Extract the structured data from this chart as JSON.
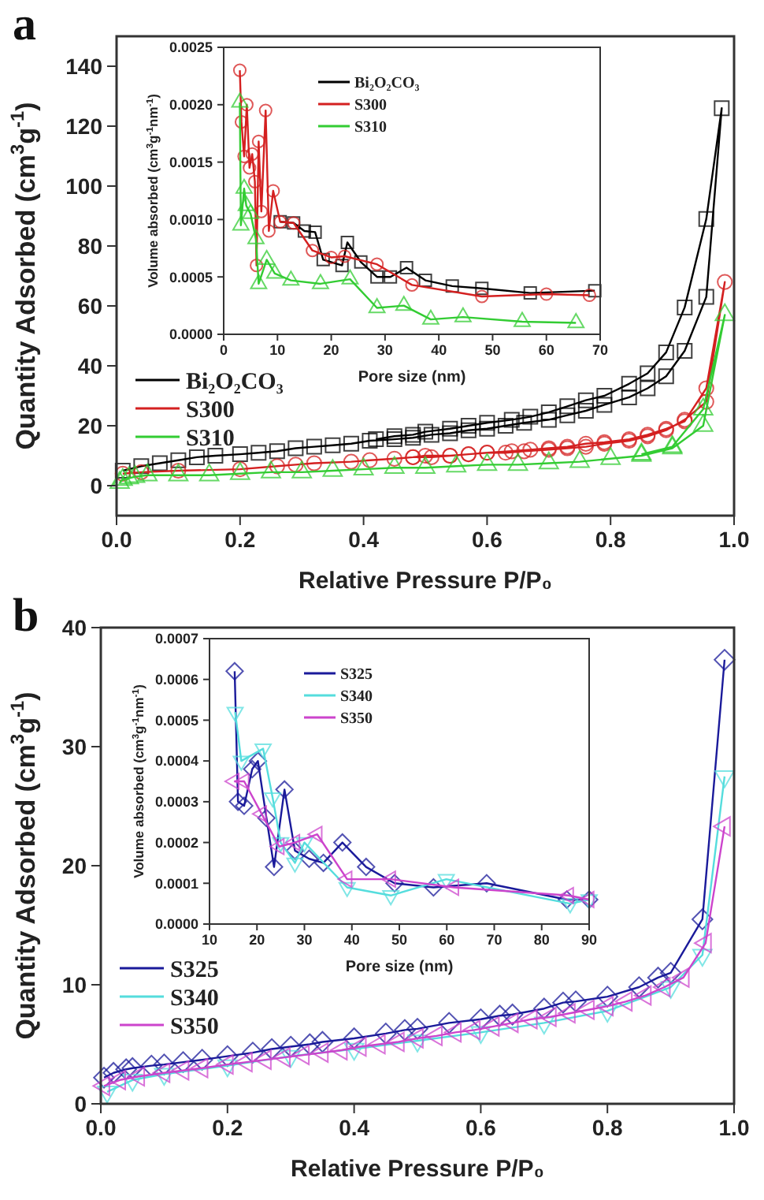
{
  "chart_data": [
    {
      "type": "line",
      "title": "a",
      "xlabel": "Relative Pressure P/P₀",
      "ylabel": "Quantity Adsorbed (cm$^{3}$g$^{-1}$)",
      "xlim": [
        0,
        1
      ],
      "ylim": [
        -10,
        150
      ],
      "xticks": [
        {
          "value": 0,
          "label": "0.0"
        },
        {
          "value": 0.2,
          "label": "0.2"
        },
        {
          "value": 0.4,
          "label": "0.4"
        },
        {
          "value": 0.6,
          "label": "0.6"
        },
        {
          "value": 0.8,
          "label": "0.8"
        },
        {
          "value": 1,
          "label": "1.0"
        }
      ],
      "yticks": [
        0,
        20,
        40,
        60,
        80,
        100,
        120,
        140
      ],
      "legend": "bottom left",
      "series": [
        {
          "name": "Bi₂O₂CO₃",
          "color": "#000000",
          "marker": "square",
          "x": [
            0.01,
            0.04,
            0.07,
            0.1,
            0.13,
            0.16,
            0.2,
            0.23,
            0.26,
            0.29,
            0.32,
            0.35,
            0.38,
            0.41,
            0.45,
            0.48,
            0.51,
            0.54,
            0.57,
            0.6,
            0.63,
            0.66,
            0.7,
            0.73,
            0.76,
            0.79,
            0.83,
            0.86,
            0.89,
            0.92,
            0.955,
            0.98,
            0.955,
            0.92,
            0.89,
            0.86,
            0.83,
            0.79,
            0.76,
            0.73,
            0.7,
            0.67,
            0.64,
            0.6,
            0.57,
            0.54,
            0.5,
            0.48,
            0.45,
            0.42
          ],
          "values": [
            5,
            6.5,
            7.5,
            8.5,
            9.5,
            10,
            10.5,
            11,
            11.5,
            12.5,
            13,
            13.5,
            14,
            15,
            15.5,
            16,
            17,
            17.5,
            18.5,
            19,
            20,
            21,
            22,
            23.5,
            25,
            27,
            29.5,
            32.5,
            36.5,
            45,
            63,
            126,
            89,
            59.5,
            44.5,
            37.5,
            34,
            30,
            28.5,
            26.5,
            24.5,
            23,
            22,
            21,
            20,
            19,
            18,
            17,
            16.5,
            15.5
          ]
        },
        {
          "name": "S300",
          "color": "#d42020",
          "marker": "circle",
          "x": [
            0.01,
            0.04,
            0.1,
            0.2,
            0.26,
            0.29,
            0.32,
            0.38,
            0.41,
            0.45,
            0.48,
            0.51,
            0.54,
            0.57,
            0.6,
            0.63,
            0.66,
            0.7,
            0.73,
            0.76,
            0.79,
            0.83,
            0.86,
            0.89,
            0.92,
            0.955,
            0.985,
            0.955,
            0.92,
            0.89,
            0.86,
            0.83,
            0.79,
            0.76,
            0.73,
            0.7,
            0.67,
            0.64,
            0.6,
            0.57,
            0.54,
            0.5,
            0.48
          ],
          "values": [
            4,
            4.5,
            5,
            5.5,
            6.5,
            7,
            7.5,
            8,
            8.5,
            9,
            9.5,
            9.5,
            10,
            10.5,
            11,
            11,
            11.5,
            12,
            12.5,
            13,
            14,
            15,
            16.5,
            18.5,
            22,
            28,
            68,
            32.5,
            21.5,
            19,
            17,
            15.5,
            14.5,
            14,
            13,
            12.5,
            12,
            11.5,
            11,
            10.5,
            10,
            10,
            9.5
          ]
        },
        {
          "name": "S310",
          "color": "#33cc33",
          "marker": "triangle",
          "x": [
            0.005,
            0.01,
            0.02,
            0.03,
            0.05,
            0.1,
            0.15,
            0.2,
            0.25,
            0.3,
            0.35,
            0.4,
            0.45,
            0.5,
            0.55,
            0.6,
            0.65,
            0.7,
            0.75,
            0.8,
            0.85,
            0.9,
            0.95,
            0.985,
            0.95,
            0.9,
            0.85
          ],
          "values": [
            1,
            2,
            2.5,
            3,
            3.5,
            3.5,
            3.5,
            4,
            4.5,
            4.5,
            5,
            5.5,
            6,
            6,
            6.5,
            7,
            7,
            7.5,
            8,
            9,
            10,
            12.5,
            20,
            57,
            25.5,
            13,
            10.5
          ]
        }
      ]
    },
    {
      "type": "line",
      "xlabel": "Pore size (nm)",
      "ylabel": "Volume absorbed (cm$^{3}$g$^{-1}$nm$^{-1}$)",
      "xlim": [
        0,
        70
      ],
      "ylim": [
        0,
        0.0025
      ],
      "xticks": [
        0,
        10,
        20,
        30,
        40,
        50,
        60,
        70
      ],
      "yticks": [
        {
          "value": 0,
          "label": "0.0000"
        },
        {
          "value": 0.0005,
          "label": "0.0005"
        },
        {
          "value": 0.001,
          "label": "0.0010"
        },
        {
          "value": 0.0015,
          "label": "0.0015"
        },
        {
          "value": 0.002,
          "label": "0.0020"
        },
        {
          "value": 0.0025,
          "label": "0.0025"
        }
      ],
      "legend": "top",
      "series": [
        {
          "name": "Bi₂O₂CO₃",
          "color": "#000000",
          "marker": "square",
          "x": [
            10.5,
            13,
            15,
            17,
            18.5,
            22,
            23,
            25.5,
            28.5,
            31,
            34,
            37.5,
            42.5,
            48,
            57,
            69
          ],
          "values": [
            0.00098,
            0.00097,
            0.0009,
            0.00089,
            0.00065,
            0.0006,
            0.0008,
            0.00063,
            0.0005,
            0.0005,
            0.00058,
            0.00047,
            0.00042,
            0.0004,
            0.00036,
            0.00038
          ]
        },
        {
          "name": "S300",
          "color": "#d42020",
          "marker": "circle",
          "x": [
            3,
            3.3,
            3.8,
            4.3,
            4.8,
            5.3,
            5.8,
            6.1,
            6.5,
            7,
            7.8,
            8.4,
            9.2,
            10.5,
            13,
            16.5,
            20,
            22.5,
            28.5,
            35,
            48,
            60,
            68
          ],
          "values": [
            0.0023,
            0.00185,
            0.00155,
            0.002,
            0.00145,
            0.00157,
            0.00133,
            0.0006,
            0.00168,
            0.00107,
            0.00195,
            0.0009,
            0.00125,
            0.00098,
            0.00097,
            0.00073,
            0.00067,
            0.00068,
            0.00061,
            0.00043,
            0.00033,
            0.00035,
            0.00034
          ]
        },
        {
          "name": "S310",
          "color": "#33cc33",
          "marker": "triangle",
          "x": [
            3,
            3.2,
            3.8,
            4.2,
            5,
            6,
            6.5,
            8,
            9.5,
            12.5,
            18,
            23.5,
            28.5,
            33.5,
            38.5,
            44.5,
            55.5,
            65.5
          ],
          "values": [
            0.00202,
            0.00095,
            0.00127,
            0.00112,
            0.00105,
            0.00083,
            0.00044,
            0.00065,
            0.00053,
            0.00047,
            0.00044,
            0.00048,
            0.00023,
            0.00025,
            0.00013,
            0.00015,
            0.00011,
            0.0001
          ]
        }
      ]
    },
    {
      "type": "line",
      "title": "b",
      "xlabel": "Relative Pressure P/P₀",
      "ylabel": "Quantity Adsorbed (cm$^{3}$g$^{-1}$)",
      "xlim": [
        0,
        1
      ],
      "ylim": [
        0,
        40
      ],
      "xticks": [
        {
          "value": 0,
          "label": "0.0"
        },
        {
          "value": 0.2,
          "label": "0.2"
        },
        {
          "value": 0.4,
          "label": "0.4"
        },
        {
          "value": 0.6,
          "label": "0.6"
        },
        {
          "value": 0.8,
          "label": "0.8"
        },
        {
          "value": 1,
          "label": "1.0"
        }
      ],
      "yticks": [
        0,
        10,
        20,
        30,
        40
      ],
      "legend": "bottom left",
      "series": [
        {
          "name": "S325",
          "color": "#1a1a9a",
          "marker": "diamond",
          "x": [
            0.005,
            0.02,
            0.04,
            0.05,
            0.08,
            0.1,
            0.13,
            0.16,
            0.2,
            0.24,
            0.27,
            0.3,
            0.33,
            0.35,
            0.4,
            0.45,
            0.48,
            0.5,
            0.55,
            0.6,
            0.63,
            0.65,
            0.7,
            0.73,
            0.75,
            0.8,
            0.85,
            0.88,
            0.9,
            0.95,
            0.985
          ],
          "values": [
            2.2,
            2.6,
            2.9,
            3,
            3.2,
            3.3,
            3.5,
            3.7,
            4,
            4.3,
            4.6,
            4.8,
            5,
            5.2,
            5.5,
            5.9,
            6.2,
            6.3,
            6.8,
            7.1,
            7.4,
            7.5,
            8,
            8.5,
            8.6,
            9,
            9.8,
            10.6,
            11,
            15.5,
            37.3
          ]
        },
        {
          "name": "S340",
          "color": "#55dddd",
          "marker": "triangle-down",
          "x": [
            0.01,
            0.05,
            0.1,
            0.2,
            0.3,
            0.4,
            0.5,
            0.6,
            0.7,
            0.8,
            0.9,
            0.95,
            0.985
          ],
          "values": [
            1,
            2,
            2.5,
            3.2,
            4,
            4.6,
            5.3,
            6,
            6.8,
            7.8,
            9.8,
            12.5,
            27.5
          ]
        },
        {
          "name": "S350",
          "color": "#cc44cc",
          "marker": "triangle-left",
          "x": [
            0.005,
            0.03,
            0.06,
            0.1,
            0.13,
            0.16,
            0.2,
            0.23,
            0.26,
            0.29,
            0.32,
            0.35,
            0.38,
            0.41,
            0.44,
            0.47,
            0.5,
            0.53,
            0.56,
            0.59,
            0.62,
            0.65,
            0.68,
            0.71,
            0.74,
            0.77,
            0.8,
            0.83,
            0.86,
            0.89,
            0.92,
            0.955,
            0.985
          ],
          "values": [
            1.5,
            2,
            2.3,
            2.6,
            2.8,
            3,
            3.3,
            3.5,
            3.7,
            3.9,
            4.1,
            4.3,
            4.5,
            4.8,
            5,
            5.2,
            5.5,
            5.7,
            6,
            6.2,
            6.5,
            6.8,
            7.1,
            7.3,
            7.6,
            7.9,
            8.2,
            8.6,
            9.1,
            9.8,
            10.6,
            13.5,
            23.3
          ]
        }
      ]
    },
    {
      "type": "line",
      "xlabel": "Pore size (nm)",
      "ylabel": "Volume absorbed (cm$^{3}$g$^{-1}$nm$^{-1}$)",
      "xlim": [
        10,
        90
      ],
      "ylim": [
        0,
        0.0007
      ],
      "xticks": [
        10,
        20,
        30,
        40,
        50,
        60,
        70,
        80,
        90
      ],
      "yticks": [
        {
          "value": 0,
          "label": "0.0000"
        },
        {
          "value": 0.0001,
          "label": "0.0001"
        },
        {
          "value": 0.0002,
          "label": "0.0002"
        },
        {
          "value": 0.0003,
          "label": "0.0003"
        },
        {
          "value": 0.0004,
          "label": "0.0004"
        },
        {
          "value": 0.0005,
          "label": "0.0005"
        },
        {
          "value": 0.0006,
          "label": "0.0006"
        },
        {
          "value": 0.0007,
          "label": "0.0007"
        }
      ],
      "legend": "top",
      "series": [
        {
          "name": "S325",
          "color": "#1a1a9a",
          "marker": "diamond",
          "x": [
            15.3,
            16,
            17.3,
            19,
            20.2,
            22,
            23.6,
            25.8,
            28,
            31,
            34,
            38,
            43,
            49,
            57.2,
            68.4,
            85.3,
            90
          ],
          "values": [
            0.00062,
            0.0003,
            0.00029,
            0.00038,
            0.0004,
            0.00026,
            0.00014,
            0.00033,
            0.00018,
            0.00016,
            0.00015,
            0.0002,
            0.00014,
            0.0001,
            9e-05,
            0.0001,
            6e-05,
            6e-05
          ]
        },
        {
          "name": "S340",
          "color": "#55dddd",
          "marker": "triangle-down",
          "x": [
            15.4,
            16.7,
            21.3,
            23.3,
            25,
            28,
            30,
            39,
            48.2,
            59.9,
            86,
            90
          ],
          "values": [
            0.00052,
            0.0004,
            0.00043,
            0.00031,
            0.0002,
            0.00015,
            0.0002,
            9e-05,
            7e-05,
            0.00011,
            5e-05,
            6e-05
          ]
        },
        {
          "name": "S350",
          "color": "#cc44cc",
          "marker": "triangle-left",
          "x": [
            15.2,
            17.3,
            21,
            24.7,
            28,
            32.7,
            39,
            48.2,
            61.5,
            85.7,
            90
          ],
          "values": [
            0.00035,
            0.00035,
            0.00027,
            0.00019,
            0.0002,
            0.00022,
            0.00011,
            0.00011,
            9e-05,
            7e-05,
            6e-05
          ]
        }
      ]
    }
  ]
}
